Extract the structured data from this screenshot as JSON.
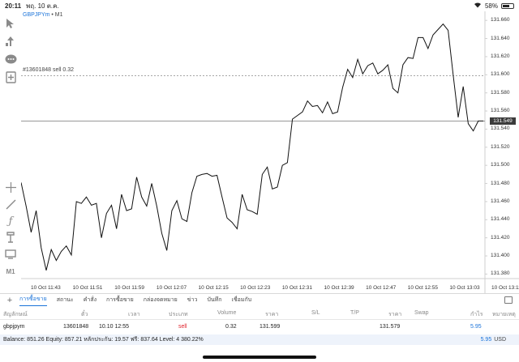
{
  "status_bar": {
    "time": "20:11",
    "date": "พฤ. 10 ต.ค.",
    "battery": "58%",
    "battery_level": 0.58
  },
  "chart": {
    "symbol": "GBPJPYm",
    "separator": " • ",
    "timeframe": "M1",
    "order_line_label": "#13601848 sell 0.32",
    "current_price": "131.549",
    "y_ticks": [
      "131.660",
      "131.640",
      "131.620",
      "131.600",
      "131.580",
      "131.560",
      "131.540",
      "131.520",
      "131.500",
      "131.480",
      "131.460",
      "131.440",
      "131.420",
      "131.400",
      "131.380"
    ],
    "x_ticks": [
      "10 Oct 11:43",
      "10 Oct 11:51",
      "10 Oct 11:59",
      "10 Oct 12:07",
      "10 Oct 12:15",
      "10 Oct 12:23",
      "10 Oct 12:31",
      "10 Oct 12:39",
      "10 Oct 12:47",
      "10 Oct 12:55",
      "10 Oct 13:03",
      "10 Oct 13:11"
    ]
  },
  "chart_data": {
    "type": "line",
    "ylim": [
      131.375,
      131.67
    ],
    "order_price": 131.599,
    "current_price": 131.549,
    "values": [
      131.481,
      131.455,
      131.426,
      131.45,
      131.409,
      131.384,
      131.407,
      131.395,
      131.405,
      131.411,
      131.401,
      131.46,
      131.458,
      131.465,
      131.456,
      131.458,
      131.42,
      131.447,
      131.456,
      131.43,
      131.468,
      131.45,
      131.452,
      131.487,
      131.465,
      131.455,
      131.48,
      131.455,
      131.425,
      131.406,
      131.45,
      131.461,
      131.441,
      131.438,
      131.47,
      131.488,
      131.49,
      131.491,
      131.488,
      131.489,
      131.465,
      131.442,
      131.437,
      131.43,
      131.468,
      131.451,
      131.449,
      131.446,
      131.49,
      131.498,
      131.474,
      131.476,
      131.5,
      131.503,
      131.551,
      131.555,
      131.559,
      131.571,
      131.565,
      131.566,
      131.558,
      131.57,
      131.557,
      131.559,
      131.586,
      131.606,
      131.597,
      131.617,
      131.601,
      131.61,
      131.613,
      131.601,
      131.605,
      131.611,
      131.585,
      131.58,
      131.611,
      131.619,
      131.618,
      131.641,
      131.641,
      131.629,
      131.644,
      131.65,
      131.656,
      131.649,
      131.6,
      131.553,
      131.587,
      131.546,
      131.538,
      131.549,
      131.549
    ]
  },
  "tabs": [
    "การซื้อขาย",
    "สถานะ",
    "คำสั่ง",
    "การซื้อขาย",
    "กล่องจดหมาย",
    "ข่าว",
    "บันทึก",
    "เชื่อมกับ"
  ],
  "table": {
    "headers": [
      "สัญลักษณ์",
      "ตั๋ว",
      "เวลา",
      "ประเภท",
      "Volume",
      "ราคา",
      "S/L",
      "T/P",
      "ราคา",
      "Swap",
      "กำไร",
      "หมายเหตุ"
    ],
    "row": {
      "symbol": "gbpjpym",
      "ticket": "13601848",
      "time": "10.10 12:55",
      "type": "sell",
      "volume": "0.32",
      "open_price": "131.599",
      "current_price": "131.579",
      "profit": "5.95"
    }
  },
  "summary": {
    "text": "Balance: 851.26 Equity: 857.21 หลักประกัน: 19.57 ฟรี: 837.64 Level: 4 380.22%",
    "total": "5.95",
    "currency": "USD"
  },
  "colors": {
    "accent": "#1a73d9",
    "sell": "#e0202a",
    "line": "#111111"
  }
}
